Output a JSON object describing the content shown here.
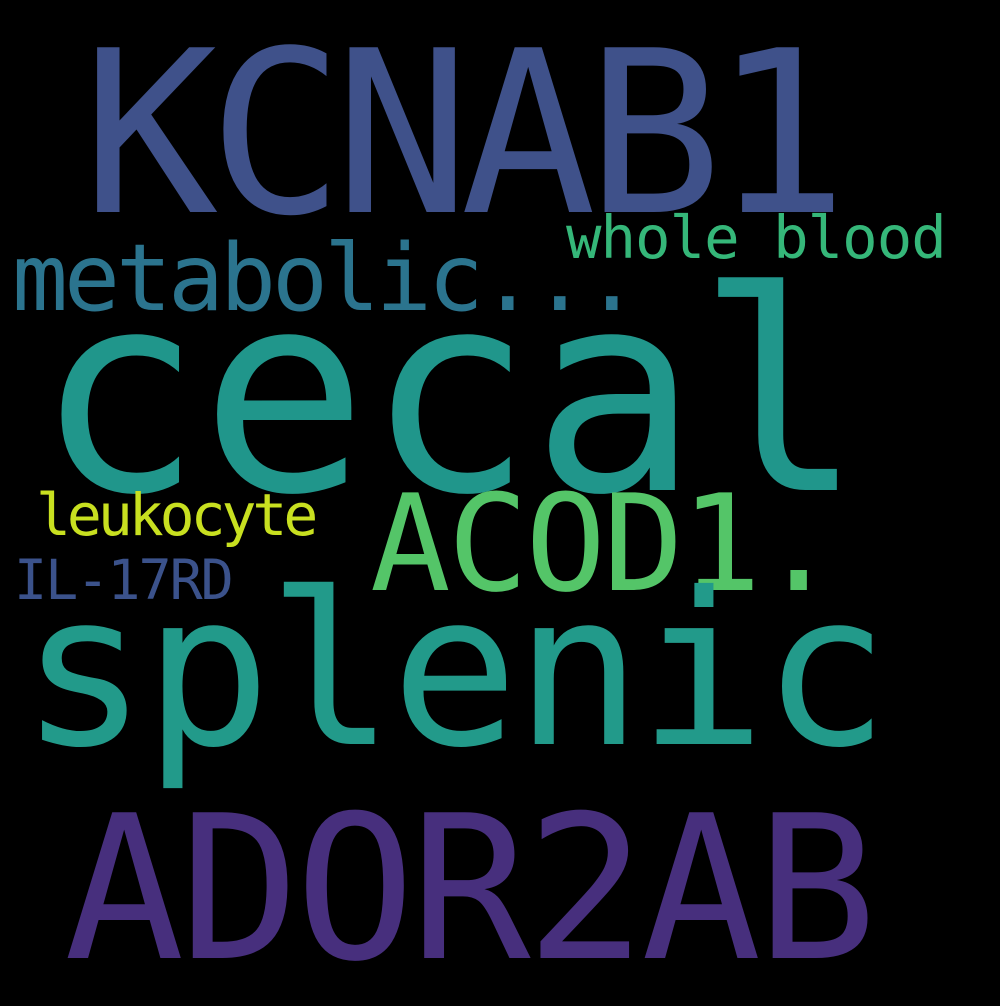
{
  "words": [
    {
      "id": "kcnab1",
      "text": "KCNAB1",
      "color": "#3f518a"
    },
    {
      "id": "cecal",
      "text": "cecal",
      "color": "#20968b"
    },
    {
      "id": "metabolic",
      "text": "metabolic...",
      "color": "#2b748e"
    },
    {
      "id": "whole",
      "text": "whole blood",
      "color": "#35b779"
    },
    {
      "id": "leukocyte",
      "text": "leukocyte",
      "color": "#c8e020"
    },
    {
      "id": "acod1",
      "text": "ACOD1.",
      "color": "#54c568"
    },
    {
      "id": "il17rd",
      "text": "IL-17RD",
      "color": "#3b528b"
    },
    {
      "id": "splenic",
      "text": "splenic",
      "color": "#229a8a"
    },
    {
      "id": "ador2ab",
      "text": "ADOR2AB",
      "color": "#472f7d"
    }
  ]
}
